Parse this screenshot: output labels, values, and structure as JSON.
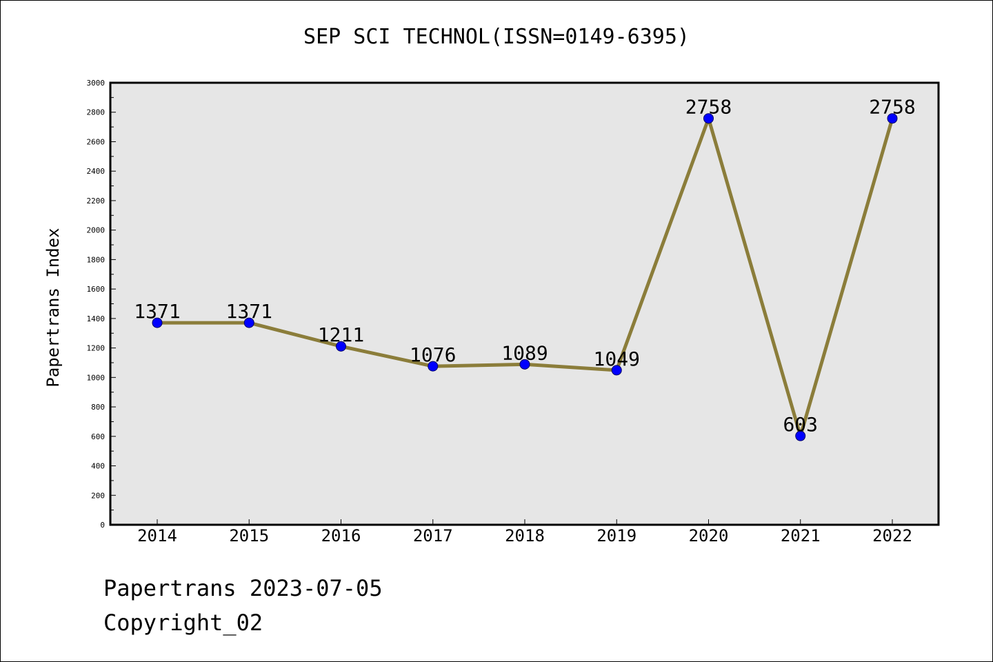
{
  "chart_data": {
    "type": "line",
    "title": "SEP SCI TECHNOL(ISSN=0149-6395)",
    "xlabel": "",
    "ylabel": "Papertrans Index",
    "categories": [
      "2014",
      "2015",
      "2016",
      "2017",
      "2018",
      "2019",
      "2020",
      "2021",
      "2022"
    ],
    "series": [
      {
        "values": [
          1371,
          1371,
          1211,
          1076,
          1089,
          1049,
          2758,
          603,
          2758
        ],
        "line_color": "#8B7D3A",
        "marker_color": "#0000FF"
      }
    ],
    "data_labels": [
      "1371",
      "1371",
      "1211",
      "1076",
      "1089",
      "1049",
      "2758",
      "603",
      "2758"
    ],
    "ylim": [
      0,
      3000
    ],
    "yticks": [
      0,
      200,
      400,
      600,
      800,
      1000,
      1200,
      1400,
      1600,
      1800,
      2000,
      2200,
      2400,
      2600,
      2800,
      3000
    ],
    "ytick_labels": [
      "0",
      "200",
      "400",
      "600",
      "800",
      "1000",
      "1200",
      "1400",
      "1600",
      "1800",
      "2000",
      "2200",
      "2400",
      "2600",
      "2800",
      "3000"
    ],
    "plot_background": "#E6E6E6",
    "grid": false,
    "legend": "none"
  },
  "footer": {
    "line1": "Papertrans 2023-07-05",
    "line2": "Copyright_02"
  }
}
